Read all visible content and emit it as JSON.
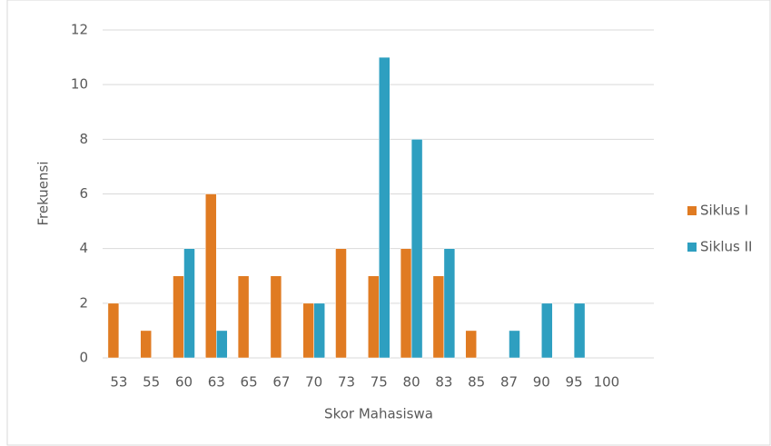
{
  "chart_data": {
    "type": "bar",
    "x_label": "Skor Mahasiswa",
    "y_label": "Frekuensi",
    "categories": [
      "53",
      "55",
      "60",
      "63",
      "65",
      "67",
      "70",
      "73",
      "75",
      "80",
      "83",
      "85",
      "87",
      "90",
      "95",
      "100"
    ],
    "series": [
      {
        "name": "Siklus I",
        "color": "#e07b22",
        "values": [
          2,
          1,
          3,
          6,
          3,
          3,
          2,
          4,
          3,
          4,
          3,
          1,
          0,
          0,
          0,
          0
        ]
      },
      {
        "name": "Siklus II",
        "color": "#2e9fc0",
        "values": [
          0,
          0,
          4,
          1,
          0,
          0,
          2,
          0,
          11,
          8,
          4,
          0,
          1,
          2,
          2,
          0
        ]
      }
    ],
    "ylim": [
      0,
      12
    ],
    "yticks": [
      0,
      2,
      4,
      6,
      8,
      10,
      12
    ],
    "grid": true,
    "legend": "right"
  }
}
